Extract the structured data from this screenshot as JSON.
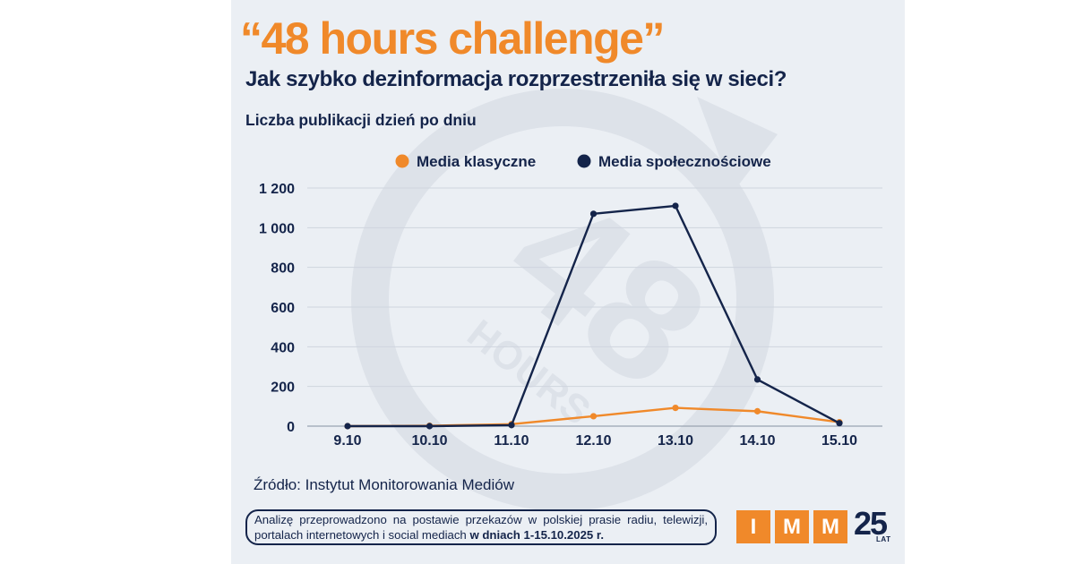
{
  "headline": "“48 hours challenge”",
  "subtitle": "Jak szybko dezinformacja rozprzestrzeniła się w sieci?",
  "chart_data": {
    "type": "line",
    "title": "Liczba publikacji dzień po dniu",
    "categories": [
      "9.10",
      "10.10",
      "11.10",
      "12.10",
      "13.10",
      "14.10",
      "15.10"
    ],
    "y_ticks": [
      0,
      200,
      400,
      600,
      800,
      1000,
      1200
    ],
    "y_tick_labels": [
      "0",
      "200",
      "400",
      "600",
      "800",
      "1 000",
      "1 200"
    ],
    "ylim": [
      0,
      1200
    ],
    "grid": true,
    "legend": "top-center",
    "xlabel": "",
    "ylabel": "",
    "series": [
      {
        "name": "Media klasyczne",
        "color": "#f0892a",
        "values": [
          0,
          2,
          10,
          50,
          92,
          75,
          20
        ]
      },
      {
        "name": "Media społecznościowe",
        "color": "#14244a",
        "values": [
          0,
          0,
          5,
          1070,
          1110,
          235,
          15
        ]
      }
    ]
  },
  "source": "Źródło: Instytut Monitorowania Mediów",
  "note": {
    "text": "Analizę przeprowadzono na postawie przekazów w polskiej prasie radiu, telewizji, portalach internetowych i social mediach ",
    "bold": "w dniach 1-15.10.2025 r."
  },
  "logo": {
    "letters": [
      "I",
      "M",
      "M"
    ],
    "years": "25",
    "years_label": "LAT"
  },
  "watermark": {
    "big": "48",
    "small": "HOURS"
  },
  "colors": {
    "accent": "#f0892a",
    "navy": "#14244a",
    "card_bg": "#ebeff4"
  }
}
